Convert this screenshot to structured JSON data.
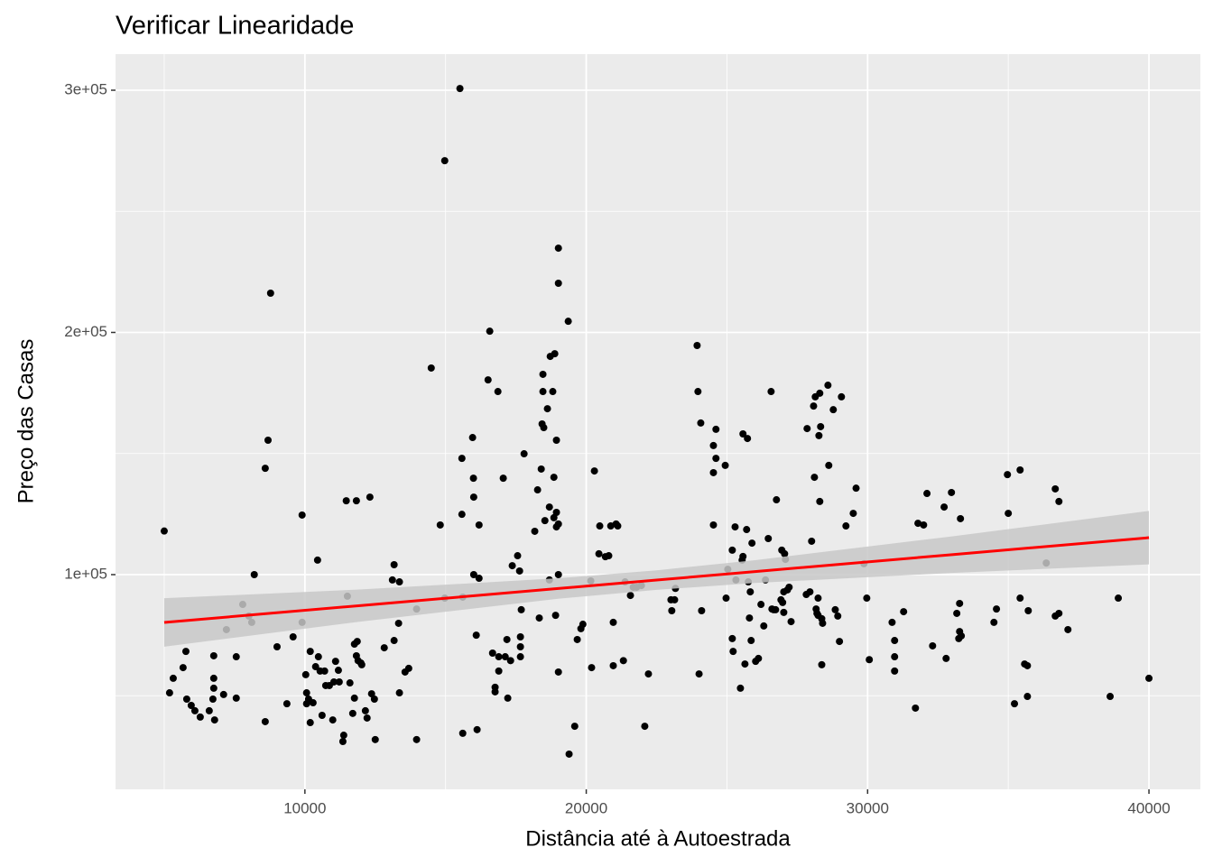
{
  "chart_data": {
    "type": "scatter",
    "title": "Verificar Linearidade",
    "x_label": "Distância até à Autoestrada",
    "y_label": "Preço das Casas",
    "xlim": [
      3269,
      41827
    ],
    "ylim": [
      11360,
      314900
    ],
    "xticks": [
      10000,
      20000,
      30000,
      40000
    ],
    "yticks": [
      {
        "value": 100000,
        "label": "1e+05"
      },
      {
        "value": 200000,
        "label": "2e+05"
      },
      {
        "value": 300000,
        "label": "3e+05"
      }
    ],
    "x_minor_grid": [
      5000,
      15000,
      25000,
      35000
    ],
    "y_minor_grid": [
      50000,
      150000,
      250000
    ],
    "grid": true,
    "panel_color": "#ebebeb",
    "color": "#000000",
    "x": [
      5000,
      5190,
      5320,
      5670,
      5770,
      5800,
      5960,
      6090,
      6280,
      6600,
      6730,
      6760,
      6760,
      6760,
      6790,
      7110,
      7210,
      7560,
      7560,
      7790,
      8010,
      8110,
      8200,
      8590,
      8590,
      8690,
      8780,
      9010,
      9360,
      9580,
      9900,
      9900,
      10030,
      10060,
      10060,
      10130,
      10190,
      10190,
      10290,
      10380,
      10450,
      10480,
      10540,
      10610,
      10700,
      10740,
      10870,
      10990,
      11030,
      11090,
      11190,
      11220,
      11350,
      11380,
      11470,
      11510,
      11600,
      11700,
      11760,
      11760,
      11830,
      11830,
      11860,
      11890,
      11990,
      12020,
      12150,
      12210,
      12310,
      12370,
      12470,
      12500,
      12820,
      13110,
      13170,
      13170,
      13330,
      13360,
      13360,
      13560,
      13690,
      13970,
      13970,
      14490,
      14810,
      14970,
      14970,
      15510,
      15580,
      15580,
      15610,
      15610,
      15960,
      15990,
      16000,
      16000,
      16090,
      16120,
      16190,
      16190,
      16570,
      16510,
      16670,
      16760,
      16760,
      16860,
      16890,
      16890,
      17050,
      17120,
      17180,
      17210,
      17310,
      17370,
      17560,
      17630,
      17660,
      17660,
      17660,
      17690,
      17790,
      18170,
      18270,
      18330,
      18400,
      18430,
      18460,
      18460,
      18490,
      18530,
      18620,
      18690,
      18690,
      18720,
      18810,
      18850,
      18850,
      18880,
      18910,
      18940,
      18940,
      18940,
      19010,
      19010,
      19010,
      19010,
      19010,
      19360,
      19390,
      19590,
      19680,
      19810,
      19880,
      20160,
      20190,
      20290,
      20450,
      20480,
      20680,
      20800,
      20870,
      20960,
      20960,
      21060,
      21120,
      21320,
      21380,
      21570,
      21670,
      21790,
      21960,
      22080,
      22210,
      23040,
      23010,
      23140,
      23170,
      23940,
      23970,
      24010,
      24070,
      24100,
      24520,
      24520,
      24520,
      24610,
      24610,
      24940,
      24970,
      25030,
      25190,
      25190,
      25220,
      25290,
      25320,
      25480,
      25540,
      25570,
      25570,
      25640,
      25700,
      25730,
      25760,
      25800,
      25830,
      25860,
      25890,
      26020,
      26120,
      26210,
      26310,
      26370,
      26470,
      26570,
      26600,
      26660,
      26730,
      26760,
      26920,
      26950,
      26980,
      27020,
      27020,
      27050,
      27080,
      27150,
      27210,
      27280,
      27850,
      27820,
      27950,
      28010,
      28080,
      28110,
      28140,
      28170,
      28200,
      28240,
      28240,
      28270,
      28300,
      28300,
      28330,
      28370,
      28370,
      28400,
      28590,
      28620,
      28780,
      28850,
      28940,
      29000,
      29070,
      29230,
      29490,
      29590,
      29870,
      29970,
      30060,
      30870,
      30960,
      30960,
      30960,
      31280,
      31700,
      31790,
      31990,
      32110,
      32310,
      32720,
      32790,
      32980,
      33170,
      33240,
      33270,
      33300,
      33270,
      33330,
      34490,
      34580,
      34970,
      35000,
      35220,
      35420,
      35420,
      35580,
      35680,
      35680,
      35710,
      36350,
      36670,
      36670,
      36800,
      36800,
      37120,
      38620,
      38910,
      40000
    ],
    "y": [
      118000,
      51200,
      57200,
      61600,
      68300,
      48600,
      46000,
      43800,
      41200,
      43800,
      48600,
      57200,
      53100,
      66500,
      40000,
      50500,
      77300,
      49000,
      66100,
      87700,
      82900,
      80300,
      100000,
      143900,
      39300,
      155500,
      216200,
      70200,
      46700,
      74300,
      124600,
      80300,
      58700,
      51200,
      46700,
      48600,
      38900,
      68300,
      47100,
      62000,
      106000,
      66100,
      60200,
      41900,
      60200,
      54200,
      54200,
      40000,
      55700,
      64200,
      60500,
      55700,
      31100,
      33700,
      130500,
      91100,
      55300,
      42700,
      49000,
      71300,
      130500,
      66500,
      72400,
      64500,
      63500,
      62800,
      43800,
      40800,
      132000,
      50800,
      48600,
      31900,
      69800,
      97800,
      104100,
      72800,
      79900,
      97000,
      51200,
      59800,
      61300,
      31900,
      85800,
      185300,
      120500,
      270900,
      90300,
      300700,
      148000,
      124900,
      90700,
      34500,
      156600,
      139800,
      132000,
      100000,
      75000,
      36000,
      120500,
      98500,
      200500,
      180400,
      67600,
      53500,
      51600,
      175600,
      66100,
      60200,
      139800,
      66100,
      73200,
      49000,
      64500,
      103700,
      107800,
      101500,
      74300,
      70200,
      66100,
      85500,
      149900,
      117900,
      135000,
      82100,
      143600,
      162200,
      182700,
      175600,
      160700,
      122300,
      168500,
      127900,
      97800,
      190100,
      175600,
      140200,
      123500,
      191200,
      83200,
      119700,
      125700,
      155500,
      234800,
      220300,
      59800,
      120900,
      100000,
      204600,
      25900,
      37400,
      73200,
      77700,
      79500,
      97400,
      61600,
      142800,
      108600,
      120100,
      107400,
      107800,
      120100,
      62400,
      80300,
      120900,
      120100,
      64500,
      97000,
      91400,
      94800,
      94800,
      95500,
      37400,
      59000,
      85100,
      89600,
      89600,
      94300,
      194600,
      175600,
      59000,
      162600,
      85100,
      142100,
      120500,
      153300,
      148000,
      160000,
      145100,
      90300,
      102200,
      110100,
      73600,
      68300,
      119700,
      97800,
      53100,
      106000,
      107500,
      158100,
      63100,
      118600,
      156200,
      97000,
      82100,
      92900,
      72800,
      113000,
      64200,
      65400,
      87700,
      78800,
      97800,
      114900,
      175600,
      85800,
      85500,
      85500,
      130900,
      89600,
      110100,
      88500,
      84400,
      92900,
      108600,
      106300,
      93700,
      94800,
      80600,
      160300,
      91800,
      92900,
      113800,
      169600,
      140200,
      173400,
      85800,
      84000,
      83200,
      90300,
      157400,
      130200,
      174900,
      161100,
      81800,
      62800,
      79900,
      178200,
      145100,
      168100,
      85500,
      82900,
      72400,
      173400,
      120100,
      125300,
      135700,
      104500,
      90300,
      64900,
      80300,
      72800,
      66100,
      60200,
      84700,
      44900,
      121200,
      120500,
      133500,
      70600,
      127900,
      65400,
      133900,
      84000,
      73600,
      88100,
      123100,
      76500,
      74700,
      80300,
      85800,
      141300,
      125300,
      46700,
      143200,
      90300,
      63100,
      49700,
      62400,
      85100,
      104800,
      135400,
      82900,
      130200,
      84000,
      77300,
      49700,
      90300,
      57200
    ],
    "fit": {
      "color": "#ff0000",
      "band_color": "#c8c8c8",
      "x": [
        5000,
        12000,
        19000,
        22500,
        26000,
        33000,
        40000
      ],
      "values": [
        80260,
        87260,
        94260,
        97760,
        101260,
        108260,
        115260
      ],
      "lower": [
        70260,
        80640,
        90030,
        93730,
        96545,
        100720,
        104230
      ],
      "upper": [
        90260,
        93880,
        98490,
        101790,
        105975,
        115800,
        126290
      ]
    }
  }
}
